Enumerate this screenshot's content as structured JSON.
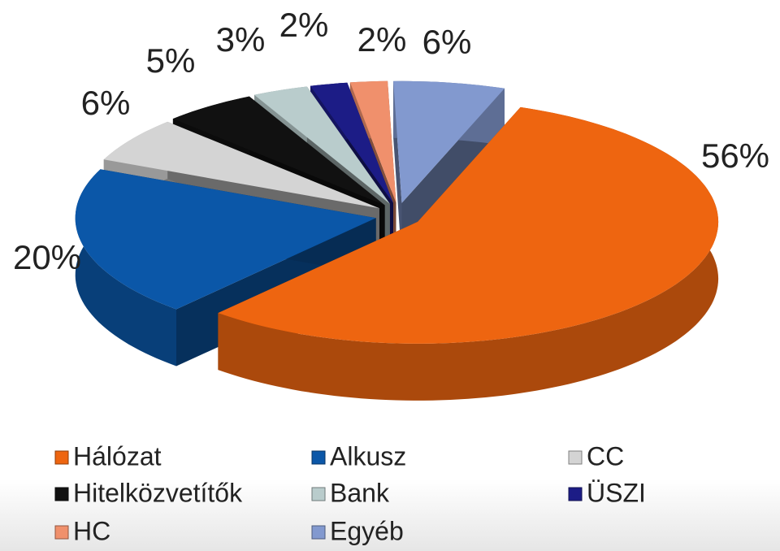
{
  "chart_data": {
    "type": "pie3d",
    "categories": [
      "Hálózat",
      "Alkusz",
      "CC",
      "Hitelközvetítők",
      "Bank",
      "ÜSZI",
      "HC",
      "Egyéb"
    ],
    "values": [
      56,
      20,
      6,
      5,
      3,
      2,
      2,
      6
    ],
    "value_labels": [
      "56%",
      "20%",
      "6%",
      "5%",
      "3%",
      "2%",
      "2%",
      "6%"
    ],
    "colors": [
      "#ee6510",
      "#0b57a8",
      "#d4d4d4",
      "#111111",
      "#b9cccc",
      "#1c1c86",
      "#f0906c",
      "#8299cf"
    ],
    "legend": "bottom"
  }
}
